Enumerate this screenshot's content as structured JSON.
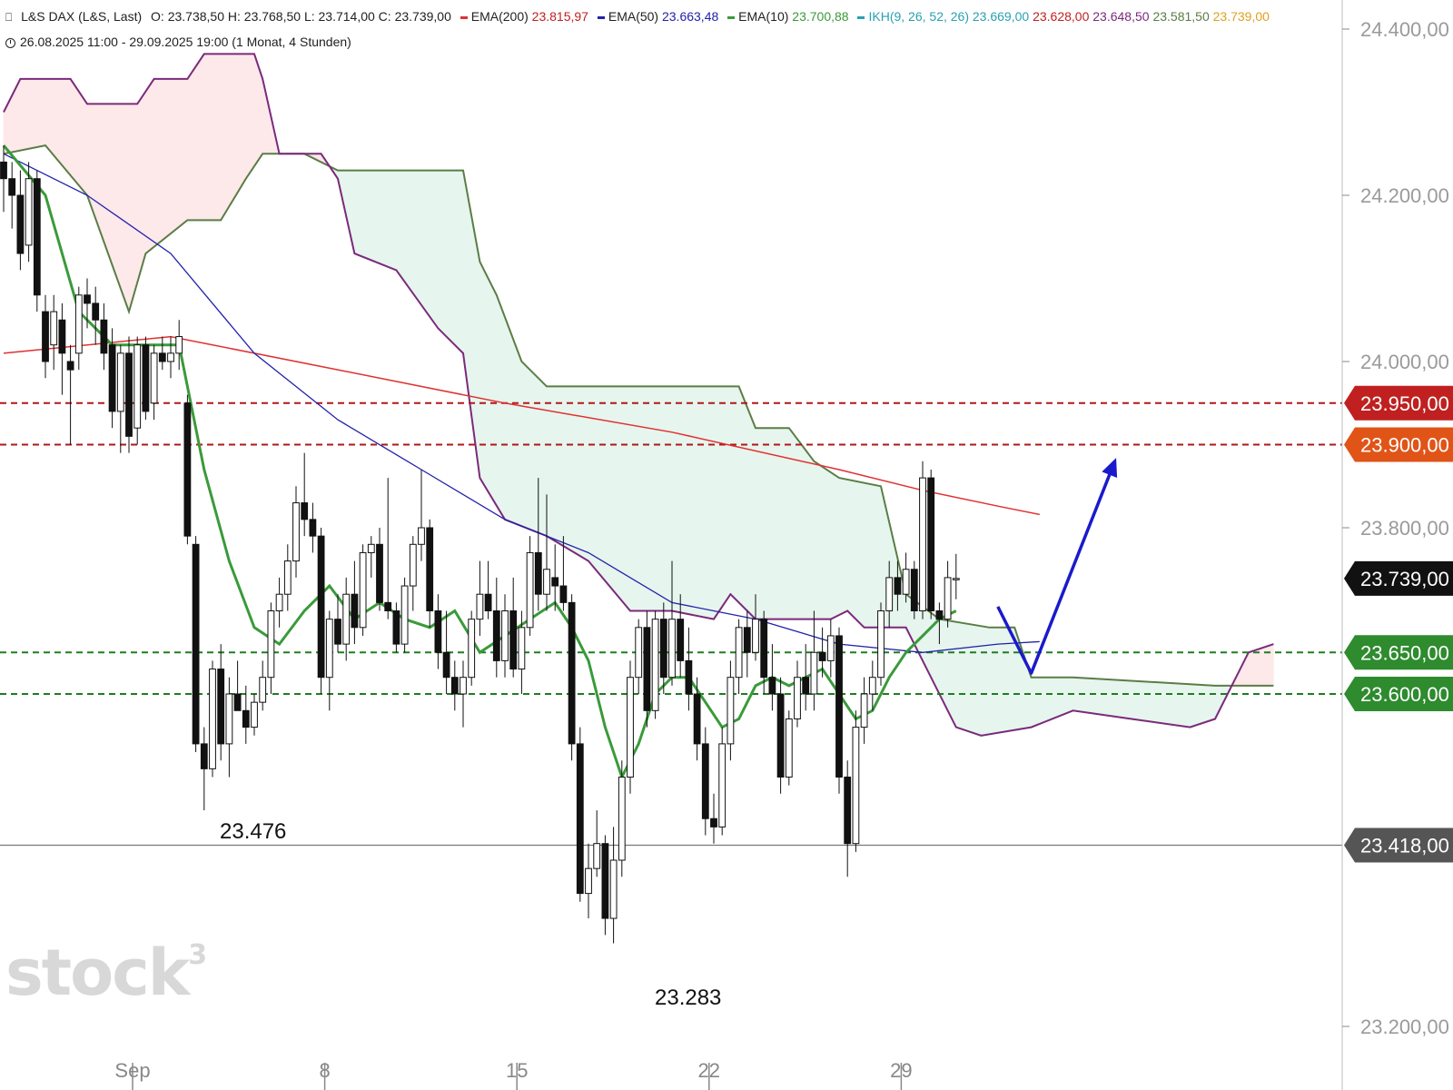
{
  "header": {
    "instrument": "L&S DAX (L&S, Last)",
    "ohlc": "O: 23.738,50  H: 23.768,50  L: 23.714,00  C: 23.739,00",
    "ema200_label": "EMA(200)",
    "ema200_value": "23.815,97",
    "ema50_label": "EMA(50)",
    "ema50_value": "23.663,48",
    "ema10_label": "EMA(10)",
    "ema10_value": "23.700,88",
    "ikh_label": "IKH(9, 26, 52, 26)",
    "ikh_v1": "23.669,00",
    "ikh_v2": "23.628,00",
    "ikh_v3": "23.648,50",
    "ikh_v4": "23.581,50",
    "ikh_v5": "23.739,00",
    "range": "26.08.2025 11:00 - 29.09.2025 19:00",
    "period": "(1 Monat, 4 Stunden)"
  },
  "colors": {
    "ema200": "#e03030",
    "ema50": "#2222aa",
    "ema10": "#3a9a3a",
    "ikh": "#2aa0b0",
    "span_a": "#5a7d45",
    "span_b": "#7a2a7a",
    "cloud_up": "#e6f5ee",
    "cloud_down": "#fde8ea",
    "resistance": "#b01818",
    "support": "#1e7e1e",
    "arrow": "#1a1acc"
  },
  "watermark": {
    "text": "stock",
    "sup": "3"
  },
  "chart_data": {
    "type": "candlestick",
    "y_axis": {
      "min": 23160,
      "max": 24440,
      "ticks": [
        24400,
        24200,
        24000,
        23800,
        23200
      ],
      "tick_labels": [
        "24.400,00",
        "24.200,00",
        "24.000,00",
        "23.800,00",
        "23.200,00"
      ]
    },
    "x_axis": {
      "labels": [
        "Sep",
        "8",
        "15",
        "22",
        "29"
      ],
      "label_bar_index": [
        15,
        38,
        61,
        84,
        107
      ]
    },
    "price_tags": [
      {
        "value": 23950,
        "label": "23.950,00",
        "color": "#c02020"
      },
      {
        "value": 23900,
        "label": "23.900,00",
        "color": "#e05418"
      },
      {
        "value": 23739,
        "label": "23.739,00",
        "color": "#111111"
      },
      {
        "value": 23650,
        "label": "23.650,00",
        "color": "#2e8b2e"
      },
      {
        "value": 23600,
        "label": "23.600,00",
        "color": "#2e8b2e"
      },
      {
        "value": 23418,
        "label": "23.418,00",
        "color": "#555555"
      }
    ],
    "horizontal_levels": [
      {
        "value": 23950,
        "style": "dashed",
        "color": "#b01818"
      },
      {
        "value": 23900,
        "style": "dashed",
        "color": "#b01818"
      },
      {
        "value": 23650,
        "style": "dashed",
        "color": "#1e7e1e"
      },
      {
        "value": 23600,
        "style": "dashed",
        "color": "#1e7e1e"
      },
      {
        "value": 23418,
        "style": "solid",
        "color": "#777777"
      }
    ],
    "annotations": [
      {
        "text": "23.476",
        "value": 23476
      },
      {
        "text": "23.283",
        "value": 23283
      }
    ],
    "candles": [
      [
        24240,
        24260,
        24180,
        24220
      ],
      [
        24220,
        24240,
        24160,
        24200
      ],
      [
        24200,
        24230,
        24110,
        24130
      ],
      [
        24140,
        24240,
        24120,
        24220
      ],
      [
        24220,
        24230,
        24060,
        24080
      ],
      [
        24060,
        24080,
        23980,
        24000
      ],
      [
        24020,
        24080,
        23990,
        24060
      ],
      [
        24050,
        24070,
        23960,
        24010
      ],
      [
        24000,
        24020,
        23900,
        23990
      ],
      [
        24010,
        24090,
        23990,
        24080
      ],
      [
        24080,
        24100,
        24040,
        24070
      ],
      [
        24070,
        24090,
        24020,
        24050
      ],
      [
        24050,
        24070,
        23990,
        24010
      ],
      [
        24020,
        24040,
        23920,
        23940
      ],
      [
        23940,
        24020,
        23890,
        24010
      ],
      [
        24010,
        24030,
        23890,
        23910
      ],
      [
        23920,
        24030,
        23900,
        24020
      ],
      [
        24020,
        24030,
        23930,
        23940
      ],
      [
        23950,
        24020,
        23930,
        24010
      ],
      [
        24010,
        24030,
        23990,
        24000
      ],
      [
        24000,
        24030,
        23980,
        24010
      ],
      [
        24010,
        24050,
        23990,
        24030
      ],
      [
        23950,
        23960,
        23780,
        23790
      ],
      [
        23780,
        23790,
        23530,
        23540
      ],
      [
        23540,
        23560,
        23460,
        23510
      ],
      [
        23510,
        23640,
        23500,
        23630
      ],
      [
        23630,
        23660,
        23520,
        23540
      ],
      [
        23540,
        23620,
        23500,
        23600
      ],
      [
        23600,
        23640,
        23580,
        23580
      ],
      [
        23580,
        23610,
        23540,
        23560
      ],
      [
        23560,
        23600,
        23550,
        23590
      ],
      [
        23590,
        23640,
        23580,
        23620
      ],
      [
        23620,
        23710,
        23600,
        23700
      ],
      [
        23700,
        23740,
        23680,
        23720
      ],
      [
        23720,
        23780,
        23700,
        23760
      ],
      [
        23760,
        23850,
        23740,
        23830
      ],
      [
        23830,
        23890,
        23790,
        23810
      ],
      [
        23810,
        23830,
        23770,
        23790
      ],
      [
        23790,
        23800,
        23600,
        23620
      ],
      [
        23620,
        23700,
        23580,
        23690
      ],
      [
        23690,
        23720,
        23650,
        23660
      ],
      [
        23660,
        23740,
        23640,
        23720
      ],
      [
        23720,
        23760,
        23660,
        23680
      ],
      [
        23680,
        23780,
        23670,
        23770
      ],
      [
        23770,
        23790,
        23740,
        23780
      ],
      [
        23780,
        23800,
        23700,
        23710
      ],
      [
        23710,
        23860,
        23690,
        23700
      ],
      [
        23700,
        23710,
        23650,
        23660
      ],
      [
        23660,
        23740,
        23650,
        23730
      ],
      [
        23730,
        23790,
        23700,
        23780
      ],
      [
        23780,
        23870,
        23760,
        23800
      ],
      [
        23800,
        23810,
        23680,
        23700
      ],
      [
        23700,
        23720,
        23630,
        23650
      ],
      [
        23650,
        23700,
        23600,
        23620
      ],
      [
        23620,
        23640,
        23580,
        23600
      ],
      [
        23600,
        23640,
        23560,
        23620
      ],
      [
        23620,
        23700,
        23610,
        23690
      ],
      [
        23690,
        23760,
        23670,
        23720
      ],
      [
        23720,
        23760,
        23690,
        23700
      ],
      [
        23700,
        23740,
        23620,
        23640
      ],
      [
        23640,
        23720,
        23620,
        23700
      ],
      [
        23700,
        23740,
        23620,
        23630
      ],
      [
        23630,
        23700,
        23600,
        23680
      ],
      [
        23680,
        23790,
        23670,
        23770
      ],
      [
        23770,
        23860,
        23700,
        23720
      ],
      [
        23720,
        23840,
        23700,
        23750
      ],
      [
        23740,
        23780,
        23700,
        23730
      ],
      [
        23730,
        23790,
        23700,
        23710
      ],
      [
        23710,
        23720,
        23520,
        23540
      ],
      [
        23540,
        23560,
        23350,
        23360
      ],
      [
        23360,
        23420,
        23330,
        23390
      ],
      [
        23390,
        23460,
        23380,
        23420
      ],
      [
        23420,
        23430,
        23310,
        23330
      ],
      [
        23330,
        23440,
        23300,
        23400
      ],
      [
        23400,
        23520,
        23380,
        23500
      ],
      [
        23500,
        23640,
        23480,
        23620
      ],
      [
        23620,
        23690,
        23600,
        23680
      ],
      [
        23680,
        23700,
        23560,
        23580
      ],
      [
        23580,
        23700,
        23570,
        23690
      ],
      [
        23690,
        23710,
        23600,
        23620
      ],
      [
        23620,
        23760,
        23610,
        23690
      ],
      [
        23690,
        23720,
        23620,
        23640
      ],
      [
        23640,
        23680,
        23580,
        23600
      ],
      [
        23600,
        23620,
        23520,
        23540
      ],
      [
        23540,
        23560,
        23430,
        23450
      ],
      [
        23450,
        23480,
        23420,
        23440
      ],
      [
        23440,
        23560,
        23430,
        23540
      ],
      [
        23540,
        23640,
        23520,
        23620
      ],
      [
        23620,
        23690,
        23600,
        23680
      ],
      [
        23680,
        23700,
        23620,
        23650
      ],
      [
        23650,
        23720,
        23640,
        23690
      ],
      [
        23690,
        23700,
        23600,
        23620
      ],
      [
        23620,
        23660,
        23580,
        23600
      ],
      [
        23600,
        23620,
        23480,
        23500
      ],
      [
        23500,
        23580,
        23490,
        23570
      ],
      [
        23570,
        23640,
        23560,
        23620
      ],
      [
        23620,
        23660,
        23580,
        23600
      ],
      [
        23600,
        23700,
        23580,
        23650
      ],
      [
        23650,
        23680,
        23620,
        23640
      ],
      [
        23640,
        23690,
        23620,
        23670
      ],
      [
        23670,
        23680,
        23480,
        23500
      ],
      [
        23500,
        23520,
        23380,
        23420
      ],
      [
        23420,
        23580,
        23410,
        23560
      ],
      [
        23560,
        23620,
        23540,
        23600
      ],
      [
        23600,
        23640,
        23580,
        23620
      ],
      [
        23620,
        23710,
        23610,
        23700
      ],
      [
        23700,
        23760,
        23680,
        23740
      ],
      [
        23740,
        23760,
        23700,
        23720
      ],
      [
        23720,
        23770,
        23710,
        23750
      ],
      [
        23750,
        23760,
        23690,
        23700
      ],
      [
        23700,
        23880,
        23690,
        23860
      ],
      [
        23860,
        23870,
        23690,
        23700
      ],
      [
        23700,
        23710,
        23660,
        23690
      ],
      [
        23690,
        23760,
        23680,
        23740
      ],
      [
        23738.5,
        23768.5,
        23714,
        23739
      ]
    ],
    "ema200": [
      [
        0,
        24010
      ],
      [
        20,
        24030
      ],
      [
        40,
        23990
      ],
      [
        60,
        23950
      ],
      [
        80,
        23915
      ],
      [
        100,
        23870
      ],
      [
        110,
        23845
      ],
      [
        119,
        23826
      ],
      [
        124,
        23816
      ]
    ],
    "ema50": [
      [
        0,
        24250
      ],
      [
        10,
        24200
      ],
      [
        20,
        24130
      ],
      [
        30,
        24010
      ],
      [
        40,
        23930
      ],
      [
        50,
        23870
      ],
      [
        60,
        23810
      ],
      [
        70,
        23770
      ],
      [
        80,
        23710
      ],
      [
        90,
        23690
      ],
      [
        100,
        23660
      ],
      [
        110,
        23650
      ],
      [
        119,
        23660
      ],
      [
        124,
        23663
      ]
    ],
    "ema10": [
      [
        0,
        24260
      ],
      [
        5,
        24200
      ],
      [
        9,
        24060
      ],
      [
        13,
        24020
      ],
      [
        17,
        24020
      ],
      [
        21,
        24020
      ],
      [
        24,
        23870
      ],
      [
        27,
        23760
      ],
      [
        30,
        23680
      ],
      [
        33,
        23660
      ],
      [
        36,
        23700
      ],
      [
        39,
        23730
      ],
      [
        42,
        23690
      ],
      [
        45,
        23710
      ],
      [
        48,
        23690
      ],
      [
        51,
        23680
      ],
      [
        54,
        23700
      ],
      [
        57,
        23650
      ],
      [
        60,
        23670
      ],
      [
        63,
        23690
      ],
      [
        66,
        23710
      ],
      [
        68,
        23680
      ],
      [
        70,
        23640
      ],
      [
        72,
        23560
      ],
      [
        74,
        23500
      ],
      [
        76,
        23540
      ],
      [
        78,
        23600
      ],
      [
        80,
        23620
      ],
      [
        82,
        23620
      ],
      [
        84,
        23590
      ],
      [
        86,
        23560
      ],
      [
        88,
        23570
      ],
      [
        90,
        23610
      ],
      [
        92,
        23620
      ],
      [
        94,
        23610
      ],
      [
        96,
        23620
      ],
      [
        98,
        23630
      ],
      [
        100,
        23600
      ],
      [
        102,
        23570
      ],
      [
        104,
        23580
      ],
      [
        106,
        23620
      ],
      [
        108,
        23650
      ],
      [
        110,
        23670
      ],
      [
        112,
        23690
      ],
      [
        114,
        23700
      ]
    ],
    "cloud_span_a": [
      [
        0,
        24250
      ],
      [
        5,
        24260
      ],
      [
        10,
        24200
      ],
      [
        15,
        24060
      ],
      [
        17,
        24130
      ],
      [
        22,
        24170
      ],
      [
        26,
        24170
      ],
      [
        29,
        24220
      ],
      [
        31,
        24250
      ],
      [
        36,
        24250
      ],
      [
        40,
        24230
      ],
      [
        55,
        24230
      ],
      [
        57,
        24120
      ],
      [
        59,
        24080
      ],
      [
        62,
        24000
      ],
      [
        65,
        23970
      ],
      [
        75,
        23970
      ],
      [
        88,
        23970
      ],
      [
        90,
        23920
      ],
      [
        94,
        23920
      ],
      [
        97,
        23880
      ],
      [
        100,
        23860
      ],
      [
        105,
        23850
      ],
      [
        108,
        23720
      ],
      [
        112,
        23690
      ],
      [
        118,
        23680
      ],
      [
        121,
        23680
      ],
      [
        123,
        23620
      ],
      [
        128,
        23620
      ],
      [
        145,
        23610
      ],
      [
        152,
        23610
      ]
    ],
    "cloud_span_b": [
      [
        0,
        24300
      ],
      [
        2,
        24340
      ],
      [
        8,
        24340
      ],
      [
        10,
        24310
      ],
      [
        16,
        24310
      ],
      [
        18,
        24340
      ],
      [
        22,
        24340
      ],
      [
        24,
        24370
      ],
      [
        30,
        24370
      ],
      [
        31,
        24340
      ],
      [
        33,
        24250
      ],
      [
        38,
        24250
      ],
      [
        40,
        24220
      ],
      [
        42,
        24130
      ],
      [
        47,
        24110
      ],
      [
        52,
        24040
      ],
      [
        55,
        24010
      ],
      [
        57,
        23860
      ],
      [
        60,
        23810
      ],
      [
        65,
        23790
      ],
      [
        70,
        23760
      ],
      [
        75,
        23700
      ],
      [
        80,
        23700
      ],
      [
        85,
        23690
      ],
      [
        87,
        23720
      ],
      [
        90,
        23690
      ],
      [
        94,
        23690
      ],
      [
        99,
        23690
      ],
      [
        101,
        23700
      ],
      [
        103,
        23680
      ],
      [
        108,
        23680
      ],
      [
        111,
        23620
      ],
      [
        114,
        23560
      ],
      [
        117,
        23550
      ],
      [
        123,
        23560
      ],
      [
        128,
        23580
      ],
      [
        135,
        23570
      ],
      [
        142,
        23560
      ],
      [
        145,
        23570
      ],
      [
        149,
        23650
      ],
      [
        152,
        23660
      ]
    ],
    "projection_arrow": {
      "points": [
        [
          119,
          23705
        ],
        [
          123,
          23625
        ],
        [
          133,
          23880
        ]
      ]
    }
  }
}
